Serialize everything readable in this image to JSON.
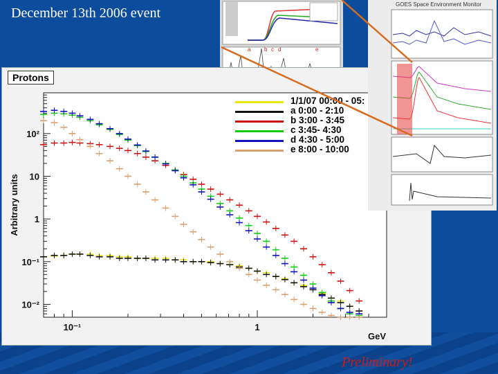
{
  "slide": {
    "title": "December 13th  2006 event",
    "preliminary": "Preliminary!"
  },
  "panel_label": "Protons",
  "colors": {
    "yellow": "#e8e800",
    "black": "#111111",
    "red": "#cc1111",
    "green": "#11cc11",
    "blue": "#1111bb",
    "orange": "#d9a070"
  },
  "chart_data": {
    "type": "scatter",
    "ylabel": "Arbitrary units",
    "xlabel": "GeV",
    "xscale": "log",
    "yscale": "log",
    "xlim": [
      0.07,
      5
    ],
    "ylim": [
      0.005,
      900
    ],
    "x_ticks": [
      {
        "v": 0.1,
        "label": "10⁻¹"
      },
      {
        "v": 1,
        "label": "1"
      }
    ],
    "y_ticks": [
      {
        "v": 0.01,
        "label": "10⁻²"
      },
      {
        "v": 0.1,
        "label": "10⁻¹"
      },
      {
        "v": 1,
        "label": "1"
      },
      {
        "v": 10,
        "label": "10"
      },
      {
        "v": 100,
        "label": "10²"
      }
    ],
    "legend_position": "top-right",
    "x": [
      0.07,
      0.08,
      0.09,
      0.1,
      0.11,
      0.125,
      0.14,
      0.16,
      0.18,
      0.2,
      0.225,
      0.25,
      0.28,
      0.32,
      0.36,
      0.4,
      0.45,
      0.5,
      0.56,
      0.63,
      0.71,
      0.8,
      0.9,
      1.0,
      1.12,
      1.26,
      1.41,
      1.58,
      1.78,
      2.0,
      2.24,
      2.51,
      2.82,
      3.16,
      3.55
    ],
    "series": [
      {
        "name": "1/1/07 00:00 - 05:",
        "color": "#e8e800",
        "values": [
          0.13,
          0.135,
          0.14,
          0.15,
          0.15,
          0.15,
          0.14,
          0.14,
          0.13,
          0.13,
          0.12,
          0.12,
          0.12,
          0.12,
          0.11,
          0.11,
          0.1,
          0.1,
          0.1,
          0.09,
          0.085,
          0.08,
          0.07,
          0.06,
          0.055,
          0.045,
          0.04,
          0.032,
          0.028,
          0.022,
          0.018,
          0.014,
          0.012,
          0.009,
          0.007
        ]
      },
      {
        "name": "a  0:00 - 2:10",
        "color": "#111111",
        "values": [
          0.13,
          0.14,
          0.14,
          0.15,
          0.15,
          0.14,
          0.13,
          0.13,
          0.12,
          0.12,
          0.12,
          0.12,
          0.11,
          0.11,
          0.11,
          0.1,
          0.1,
          0.1,
          0.095,
          0.09,
          0.085,
          0.075,
          0.07,
          0.06,
          0.05,
          0.045,
          0.038,
          0.032,
          0.026,
          0.022,
          0.017,
          0.014,
          0.011,
          0.009,
          0.007
        ]
      },
      {
        "name": "b  3:00 - 3:45",
        "color": "#cc1111",
        "values": [
          55,
          60,
          60,
          62,
          60,
          58,
          55,
          50,
          45,
          40,
          34,
          28,
          23,
          18,
          14,
          11,
          8.5,
          6.5,
          5,
          3.8,
          2.8,
          2.1,
          1.55,
          1.15,
          0.85,
          0.6,
          0.42,
          0.3,
          0.2,
          0.13,
          0.085,
          0.055,
          0.035,
          0.021,
          0.012
        ]
      },
      {
        "name": "c  3:45- 4:30",
        "color": "#11cc11",
        "values": [
          280,
          300,
          290,
          270,
          240,
          200,
          160,
          125,
          95,
          70,
          52,
          38,
          28,
          20,
          14,
          10,
          7,
          5,
          3.4,
          2.3,
          1.55,
          1.05,
          0.7,
          0.46,
          0.3,
          0.19,
          0.12,
          0.075,
          0.048,
          0.03,
          0.019,
          0.012,
          0.008,
          0.006,
          0.0055
        ]
      },
      {
        "name": "d  4:30 - 5:00",
        "color": "#1111bb",
        "values": [
          330,
          350,
          330,
          300,
          260,
          215,
          170,
          130,
          100,
          74,
          54,
          39,
          28,
          19.5,
          13.5,
          9.2,
          6.3,
          4.3,
          2.9,
          1.9,
          1.25,
          0.82,
          0.53,
          0.34,
          0.22,
          0.14,
          0.09,
          0.058,
          0.037,
          0.024,
          0.016,
          0.011,
          0.008,
          0.0065,
          0.006
        ]
      },
      {
        "name": "e  8:00 - 10:00",
        "color": "#d9a070",
        "values": [
          200,
          180,
          140,
          100,
          72,
          50,
          34,
          23,
          15,
          10,
          6.5,
          4.3,
          2.8,
          1.8,
          1.15,
          0.75,
          0.5,
          0.33,
          0.22,
          0.15,
          0.1,
          0.07,
          0.05,
          0.037,
          0.028,
          0.022,
          0.017,
          0.013,
          0.01,
          0.008,
          0.0065,
          0.0055,
          0.005,
          0.005,
          0.005
        ]
      }
    ]
  },
  "insets": {
    "goes_title": "GOES Space Environment Monitor",
    "event_marks": [
      "a",
      "b",
      "c",
      "d",
      "e"
    ]
  }
}
